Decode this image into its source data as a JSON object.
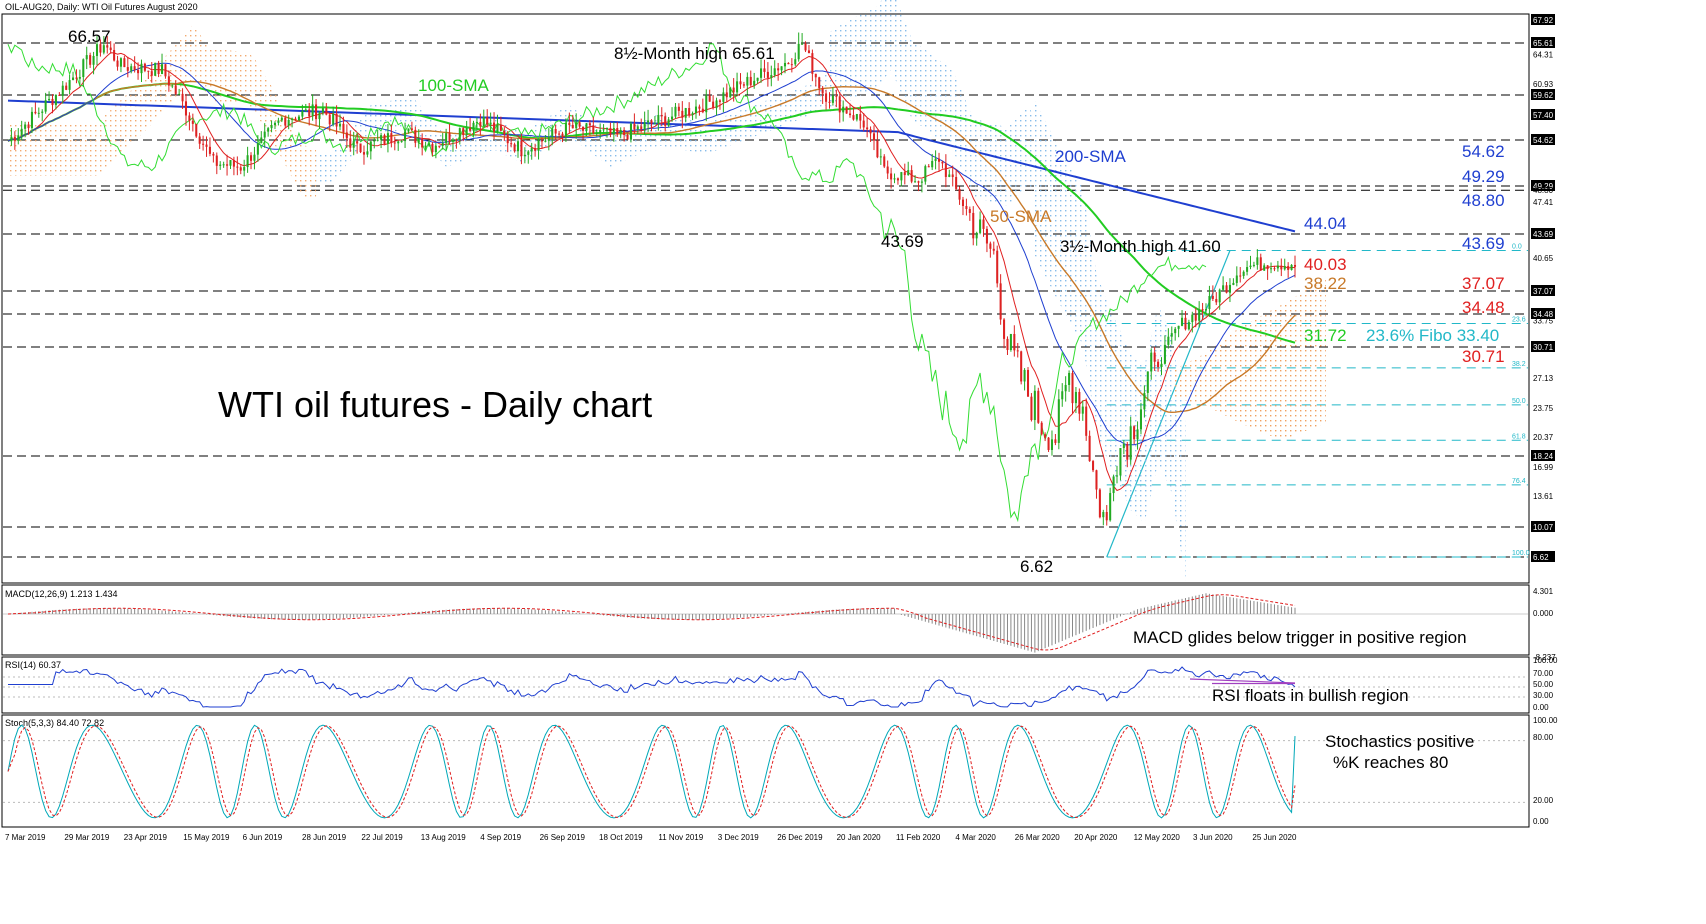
{
  "chart_data": [
    {
      "type": "candlestick",
      "header": "OIL-AUG20, Daily:  WTI Oil Futures August 2020",
      "title": "WTI oil futures - Daily chart",
      "x_ticks": [
        "7 Mar 2019",
        "29 Mar 2019",
        "23 Apr 2019",
        "15 May 2019",
        "6 Jun 2019",
        "28 Jun 2019",
        "22 Jul 2019",
        "13 Aug 2019",
        "4 Sep 2019",
        "26 Sep 2019",
        "18 Oct 2019",
        "11 Nov 2019",
        "3 Dec 2019",
        "26 Dec 2019",
        "20 Jan 2020",
        "11 Feb 2020",
        "4 Mar 2020",
        "26 Mar 2020",
        "20 Apr 2020",
        "12 May 2020",
        "3 Jun 2020",
        "25 Jun 2020"
      ],
      "y_ticks": [
        "67.92",
        "65.61",
        "64.31",
        "60.93",
        "59.62",
        "57.40",
        "54.62",
        "49.29",
        "48.80",
        "47.41",
        "43.69",
        "40.65",
        "37.07",
        "34.48",
        "33.75",
        "30.71",
        "27.13",
        "23.75",
        "20.37",
        "18.24",
        "16.99",
        "13.61",
        "10.07",
        "6.62"
      ],
      "highlight_levels": [
        "67.92",
        "65.61",
        "59.62",
        "57.40",
        "54.62",
        "49.29",
        "43.69",
        "37.07",
        "34.48",
        "30.71",
        "18.24",
        "10.07",
        "6.62"
      ],
      "dashed_levels": [
        65.61,
        59.62,
        54.62,
        49.29,
        48.8,
        43.69,
        37.07,
        34.48,
        30.71,
        18.24,
        10.07,
        6.62
      ],
      "fibo_levels": [
        {
          "label": "0.0",
          "value": 41.6
        },
        {
          "label": "23.6",
          "value": 33.4
        },
        {
          "label": "38.2",
          "value": 28.3
        },
        {
          "label": "50.0",
          "value": 24.1
        },
        {
          "label": "61.8",
          "value": 20.0
        },
        {
          "label": "76.4",
          "value": 14.9
        },
        {
          "label": "100.0",
          "value": 6.62
        }
      ],
      "annotations": [
        {
          "text": "66.57",
          "color": "#000000"
        },
        {
          "text": "8½-Month high 65.61",
          "color": "#000000"
        },
        {
          "text": "100-SMA",
          "color": "#22cc22"
        },
        {
          "text": "200-SMA",
          "color": "#1f3fd0"
        },
        {
          "text": "50-SMA",
          "color": "#c87a2a"
        },
        {
          "text": "43.69",
          "color": "#000000"
        },
        {
          "text": "3½-Month high 41.60",
          "color": "#000000"
        },
        {
          "text": "6.62",
          "color": "#000000"
        },
        {
          "text": "23.6% Fibo 33.40",
          "color": "#22b8c8"
        }
      ],
      "right_labels": [
        {
          "text": "54.62",
          "color": "#1f3fd0"
        },
        {
          "text": "49.29",
          "color": "#1f3fd0"
        },
        {
          "text": "48.80",
          "color": "#1f3fd0"
        },
        {
          "text": "44.04",
          "color": "#1f3fd0"
        },
        {
          "text": "43.69",
          "color": "#1f3fd0"
        },
        {
          "text": "40.03",
          "color": "#e02020"
        },
        {
          "text": "38.22",
          "color": "#c87a2a"
        },
        {
          "text": "37.07",
          "color": "#e02020"
        },
        {
          "text": "34.48",
          "color": "#e02020"
        },
        {
          "text": "31.72",
          "color": "#22cc22"
        },
        {
          "text": "30.71",
          "color": "#e02020"
        }
      ],
      "series": [
        {
          "name": "100-SMA",
          "color": "#22cc22"
        },
        {
          "name": "200-SMA",
          "color": "#1f3fd0"
        },
        {
          "name": "50-SMA",
          "color": "#c87a2a"
        }
      ]
    },
    {
      "type": "bar",
      "header": "MACD(12,26,9) 1.213 1.434",
      "y_ticks": [
        "4.301",
        "0.000",
        "-8.237"
      ],
      "annotation": "MACD glides below trigger in positive region"
    },
    {
      "type": "line",
      "header": "RSI(14) 60.37",
      "y_ticks": [
        "100.00",
        "70.00",
        "50.00",
        "30.00",
        "0.00"
      ],
      "annotation": "RSI floats in bullish region"
    },
    {
      "type": "line",
      "header": "Stoch(5,3,3) 84.40 72.82",
      "y_ticks": [
        "100.00",
        "80.00",
        "20.00",
        "0.00"
      ],
      "annotation_lines": [
        "Stochastics positive",
        "%K reaches 80"
      ]
    }
  ],
  "colors": {
    "bull": "#22aa22",
    "bear": "#dd2222",
    "tenkan": "#e02020",
    "kijun": "#1f3fd0",
    "chikou": "#33dd33",
    "cloud_up": "#f0a060",
    "cloud_down": "#7ab4e8",
    "fibo": "#22b8c8",
    "macd_signal": "#e02020",
    "rsi": "#1f3fd0",
    "stoch_k": "#00a8b8",
    "stoch_d": "#e02020"
  }
}
